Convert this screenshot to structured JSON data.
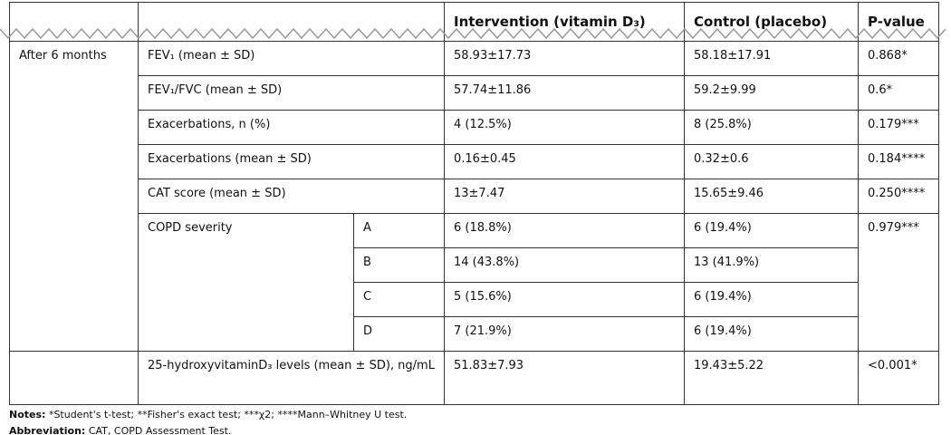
{
  "table": {
    "header": [
      "Intervention (vitamin D₃)",
      "Control (placebo)",
      "P-value"
    ],
    "group": "After 6 months",
    "rows": [
      [
        "FEV₁ (mean ± SD)",
        "58.93±17.73",
        "58.18±17.91",
        "0.868*"
      ],
      [
        "FEV₁/FVC (mean ± SD)",
        "57.74±11.86",
        "59.2±9.99",
        "0.6*"
      ],
      [
        "Exacerbations, n (%)",
        "4 (12.5%)",
        "8 (25.8%)",
        "0.179***"
      ],
      [
        "Exacerbations (mean ± SD)",
        "0.16±0.45",
        "0.32±0.6",
        "0.184****"
      ],
      [
        "CAT score (mean ± SD)",
        "13±7.47",
        "15.65±9.46",
        "0.250****"
      ]
    ],
    "severity": {
      "label": "COPD severity",
      "p": "0.979***",
      "levels": [
        [
          "A",
          "6 (18.8%)",
          "6 (19.4%)"
        ],
        [
          "B",
          "14 (43.8%)",
          "13 (41.9%)"
        ],
        [
          "C",
          "5 (15.6%)",
          "6 (19.4%)"
        ],
        [
          "D",
          "7 (21.9%)",
          "6 (19.4%)"
        ]
      ]
    },
    "vitamin_d": [
      "25-hydroxyvitaminD₃ levels (mean ± SD), ng/mL",
      "51.83±7.93",
      "19.43±5.22",
      "<0.001*"
    ]
  },
  "notes": {
    "label": "Notes:",
    "text": "*Student's t-test; **Fisher's exact test; ***χ2; ****Mann–Whitney U test."
  },
  "abbreviation": {
    "label": "Abbreviation:",
    "text": "CAT, COPD Assessment Test."
  }
}
